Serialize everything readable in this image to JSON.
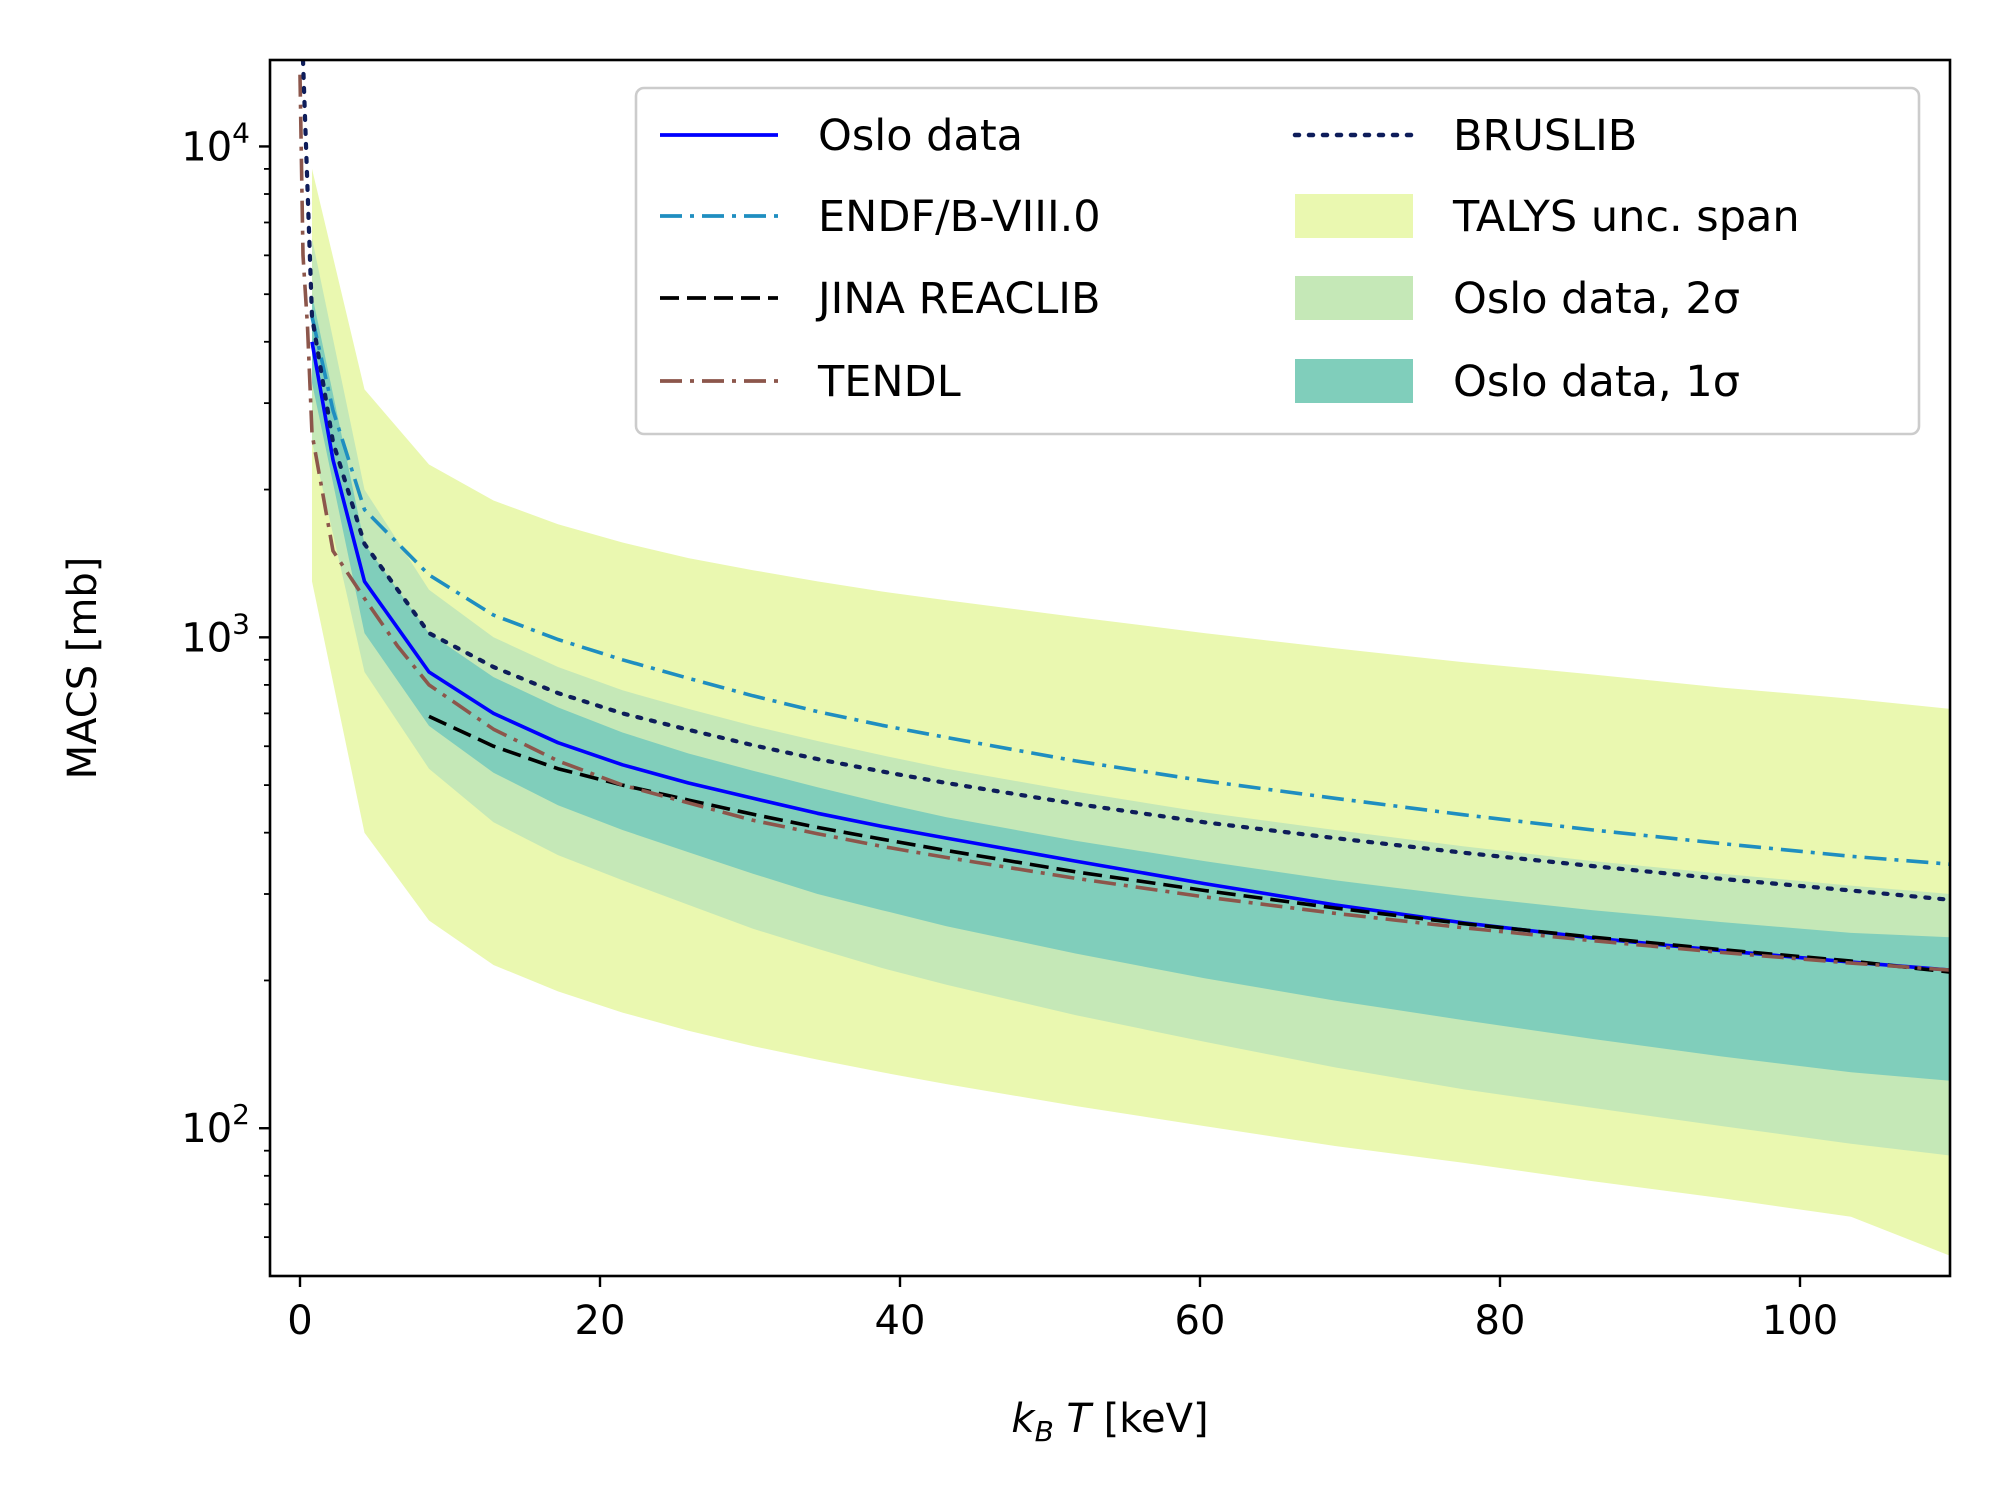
{
  "chart_data": {
    "type": "line",
    "title": "",
    "xlabel": {
      "var": "k",
      "sub": "B",
      "var2": "T",
      "unit": "[keV]"
    },
    "ylabel": "MACS [mb]",
    "xscale": "linear",
    "yscale": "log",
    "xlim": [
      -2,
      110
    ],
    "ylim": [
      50,
      15000
    ],
    "x_ticks": [
      {
        "value": 0,
        "label": "0"
      },
      {
        "value": 20,
        "label": "20"
      },
      {
        "value": 40,
        "label": "40"
      },
      {
        "value": 60,
        "label": "60"
      },
      {
        "value": 80,
        "label": "80"
      },
      {
        "value": 100,
        "label": "100"
      }
    ],
    "y_ticks": [
      {
        "value": 100,
        "base": "10",
        "exp": "2"
      },
      {
        "value": 1000,
        "base": "10",
        "exp": "3"
      },
      {
        "value": 10000,
        "base": "10",
        "exp": "4"
      }
    ],
    "y_minor_ticks": [
      60,
      70,
      80,
      90,
      200,
      300,
      400,
      500,
      600,
      700,
      800,
      900,
      2000,
      3000,
      4000,
      5000,
      6000,
      7000,
      8000,
      9000
    ],
    "legend_position": "top-right",
    "legend_columns": 2,
    "bands": [
      {
        "name": "TALYS unc. span",
        "color": "#eaf8b0",
        "x": [
          0.8,
          4.3,
          8.6,
          12.9,
          17.2,
          21.5,
          25.9,
          30.2,
          34.5,
          38.8,
          43.1,
          51.7,
          60.3,
          69.0,
          77.6,
          86.2,
          94.8,
          103.4,
          110
        ],
        "lower": [
          1300,
          400,
          265,
          215,
          190,
          172,
          158,
          147,
          138,
          130,
          123,
          111,
          101,
          92,
          85,
          78,
          72,
          66,
          55
        ],
        "upper": [
          9000,
          3200,
          2250,
          1900,
          1700,
          1560,
          1450,
          1370,
          1300,
          1240,
          1190,
          1100,
          1020,
          950,
          890,
          840,
          790,
          750,
          715
        ]
      },
      {
        "name": "Oslo data, 2σ",
        "color": "#c5e8b7",
        "x": [
          0.8,
          4.3,
          8.6,
          12.9,
          17.2,
          21.5,
          25.9,
          30.2,
          34.5,
          38.8,
          43.1,
          51.7,
          60.3,
          69.0,
          77.6,
          86.2,
          94.8,
          103.4,
          110
        ],
        "lower": [
          2500,
          850,
          540,
          420,
          360,
          320,
          285,
          255,
          232,
          212,
          196,
          170,
          150,
          133,
          120,
          110,
          101,
          93,
          88
        ],
        "upper": [
          6500,
          2000,
          1250,
          1000,
          870,
          780,
          715,
          660,
          615,
          575,
          540,
          485,
          440,
          405,
          375,
          350,
          330,
          312,
          300
        ]
      },
      {
        "name": "Oslo data, 1σ",
        "color": "#80cebb",
        "x": [
          0.8,
          4.3,
          8.6,
          12.9,
          17.2,
          21.5,
          25.9,
          30.2,
          34.5,
          38.8,
          43.1,
          51.7,
          60.3,
          69.0,
          77.6,
          86.2,
          94.8,
          103.4,
          110
        ],
        "lower": [
          3300,
          1020,
          660,
          530,
          455,
          405,
          365,
          330,
          300,
          278,
          258,
          227,
          202,
          182,
          166,
          152,
          140,
          130,
          125
        ],
        "upper": [
          5000,
          1550,
          1020,
          830,
          720,
          640,
          580,
          535,
          495,
          460,
          430,
          385,
          350,
          320,
          297,
          278,
          263,
          250,
          245
        ]
      }
    ],
    "series": [
      {
        "name": "Oslo data",
        "color": "#0000ff",
        "dash": "solid",
        "x": [
          0.8,
          2.2,
          4.3,
          8.6,
          12.9,
          17.2,
          21.5,
          25.9,
          30.2,
          34.5,
          38.8,
          43.1,
          51.7,
          60.3,
          69.0,
          77.6,
          86.2,
          94.8,
          103.4,
          110
        ],
        "values": [
          4000,
          2300,
          1300,
          850,
          700,
          610,
          550,
          505,
          470,
          438,
          412,
          390,
          350,
          315,
          285,
          262,
          244,
          230,
          218,
          210
        ]
      },
      {
        "name": "ENDF/B-VIII.0",
        "color": "#1f8ec0",
        "dash": "dashdot",
        "x": [
          0.8,
          2.2,
          4.3,
          8.6,
          12.9,
          17.2,
          21.5,
          25.9,
          30.2,
          34.5,
          38.8,
          43.1,
          51.7,
          60.3,
          69.0,
          77.6,
          86.2,
          94.8,
          103.4,
          110
        ],
        "values": [
          4500,
          2900,
          1820,
          1340,
          1110,
          990,
          900,
          825,
          760,
          706,
          662,
          625,
          560,
          510,
          470,
          435,
          405,
          380,
          358,
          345
        ]
      },
      {
        "name": "JINA REACLIB",
        "color": "#000000",
        "dash": "dashed",
        "x": [
          8.6,
          12.9,
          17.2,
          21.5,
          25.9,
          30.2,
          34.5,
          38.8,
          43.1,
          51.7,
          60.3,
          69.0,
          77.6,
          86.2,
          94.8,
          103.4,
          110
        ],
        "values": [
          690,
          600,
          540,
          500,
          466,
          436,
          410,
          388,
          368,
          333,
          305,
          281,
          261,
          245,
          231,
          219,
          208
        ]
      },
      {
        "name": "TENDL",
        "color": "#8c564b",
        "dash": "dashdot",
        "x": [
          0,
          0.2,
          0.5,
          0.8,
          2.2,
          4.3,
          6.5,
          8.6,
          12.9,
          17.2,
          21.5,
          25.9,
          30.2,
          34.5,
          38.8,
          43.1,
          51.7,
          60.3,
          69.0,
          77.6,
          86.2,
          94.8,
          103.4,
          110
        ],
        "values": [
          14000,
          6000,
          4300,
          2600,
          1500,
          1200,
          960,
          800,
          650,
          560,
          500,
          460,
          424,
          398,
          375,
          356,
          323,
          296,
          274,
          256,
          241,
          228,
          217,
          210
        ]
      },
      {
        "name": "BRUSLIB",
        "color": "#0e1d5a",
        "dash": "dotted",
        "x": [
          0.2,
          0.8,
          2.2,
          4.3,
          8.6,
          12.9,
          17.2,
          21.5,
          25.9,
          30.2,
          34.5,
          38.8,
          43.1,
          51.7,
          60.3,
          69.0,
          77.6,
          86.2,
          94.8,
          103.4,
          110
        ],
        "values": [
          15000,
          4500,
          2500,
          1550,
          1020,
          870,
          770,
          700,
          648,
          603,
          565,
          533,
          505,
          458,
          420,
          390,
          364,
          342,
          322,
          305,
          292
        ]
      }
    ],
    "legend": [
      {
        "label": "Oslo data",
        "kind": "line",
        "color": "#0000ff",
        "dash": "solid"
      },
      {
        "label": "ENDF/B-VIII.0",
        "kind": "line",
        "color": "#1f8ec0",
        "dash": "dashdot"
      },
      {
        "label": "JINA REACLIB",
        "kind": "line",
        "color": "#000000",
        "dash": "dashed"
      },
      {
        "label": "TENDL",
        "kind": "line",
        "color": "#8c564b",
        "dash": "dashdot"
      },
      {
        "label": "BRUSLIB",
        "kind": "line",
        "color": "#0e1d5a",
        "dash": "dotted"
      },
      {
        "label": "TALYS unc. span",
        "kind": "patch",
        "color": "#eaf8b0"
      },
      {
        "label": "Oslo data, 2σ",
        "kind": "patch",
        "color": "#c5e8b7"
      },
      {
        "label": "Oslo data, 1σ",
        "kind": "patch",
        "color": "#80cebb"
      }
    ]
  }
}
